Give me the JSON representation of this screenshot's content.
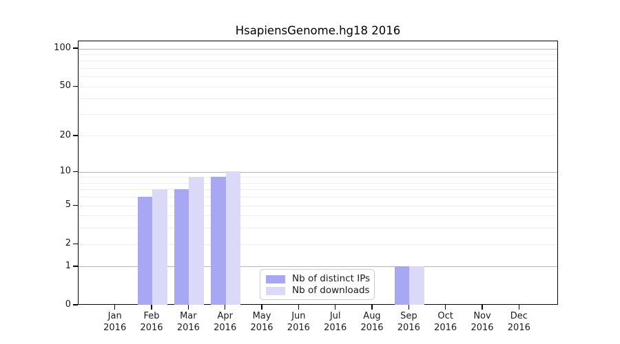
{
  "chart_data": {
    "type": "bar",
    "title": "HsapiensGenome.hg18 2016",
    "categories": [
      "Jan",
      "Feb",
      "Mar",
      "Apr",
      "May",
      "Jun",
      "Jul",
      "Aug",
      "Sep",
      "Oct",
      "Nov",
      "Dec"
    ],
    "category_year": "2016",
    "series": [
      {
        "name": "Nb of distinct IPs",
        "color": "#a7a7f3",
        "values": [
          0,
          6,
          7,
          9,
          0,
          0,
          0,
          0,
          1,
          0,
          0,
          0
        ]
      },
      {
        "name": "Nb of downloads",
        "color": "#dadaf8",
        "values": [
          0,
          7,
          9,
          10,
          0,
          0,
          0,
          0,
          1,
          0,
          0,
          0
        ]
      }
    ],
    "xlabel": "",
    "ylabel": "",
    "ylim": [
      0,
      100
    ],
    "y_scale": "log1p",
    "y_ticks": [
      0,
      1,
      2,
      5,
      10,
      20,
      50,
      100
    ],
    "y_major_gridlines": [
      1,
      10,
      100
    ],
    "y_minor_gridlines": [
      2,
      3,
      4,
      5,
      6,
      7,
      8,
      9,
      20,
      30,
      40,
      50,
      60,
      70,
      80,
      90
    ],
    "grid": true,
    "legend_position": "lower center",
    "colors": {
      "major_grid": "#b3b3b3",
      "minor_grid": "#ededed",
      "axis": "#000000",
      "text": "#1a1a1a",
      "background": "#ffffff"
    }
  }
}
